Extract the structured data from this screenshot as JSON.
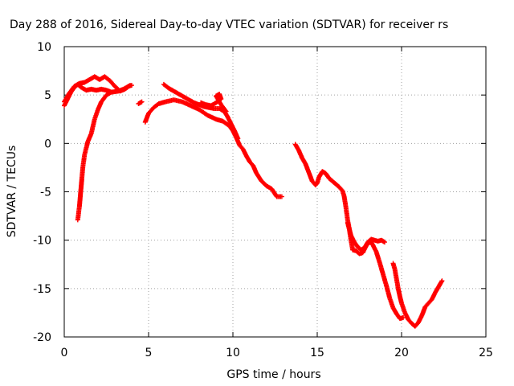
{
  "chart_data": {
    "type": "scatter",
    "title": "Day 288 of 2016, Sidereal Day-to-day VTEC variation (SDTVAR) for receiver rs",
    "xlabel": "GPS time / hours",
    "ylabel": "SDTVAR / TECUs",
    "xlim": [
      0,
      25
    ],
    "ylim": [
      -20,
      10
    ],
    "xticks": [
      0,
      5,
      10,
      15,
      20,
      25
    ],
    "yticks": [
      -20,
      -15,
      -10,
      -5,
      0,
      5,
      10
    ],
    "xtick_labels": [
      "0",
      "5",
      "10",
      "15",
      "20",
      "25"
    ],
    "ytick_labels": [
      "-20",
      "-15",
      "-10",
      "-5",
      "0",
      "5",
      "10"
    ],
    "grid": true,
    "marker": "plus",
    "color": "#ff0000",
    "series": [
      {
        "points": [
          [
            0.0,
            3.9
          ],
          [
            0.2,
            4.6
          ],
          [
            0.4,
            5.3
          ],
          [
            0.6,
            5.8
          ],
          [
            0.8,
            6.1
          ],
          [
            1.0,
            5.8
          ],
          [
            1.3,
            5.5
          ],
          [
            1.6,
            5.6
          ],
          [
            1.9,
            5.5
          ],
          [
            2.2,
            5.6
          ],
          [
            2.5,
            5.5
          ],
          [
            2.8,
            5.3
          ],
          [
            3.2,
            5.4
          ],
          [
            3.5,
            5.6
          ],
          [
            3.8,
            5.9
          ],
          [
            4.0,
            6.0
          ]
        ]
      },
      {
        "points": [
          [
            0.0,
            4.3
          ],
          [
            0.3,
            5.2
          ],
          [
            0.6,
            5.9
          ],
          [
            0.9,
            6.2
          ],
          [
            1.2,
            6.3
          ],
          [
            1.5,
            6.6
          ],
          [
            1.8,
            6.9
          ],
          [
            2.1,
            6.6
          ],
          [
            2.4,
            6.9
          ],
          [
            2.7,
            6.5
          ],
          [
            3.0,
            5.9
          ],
          [
            3.3,
            5.4
          ],
          [
            3.6,
            5.6
          ],
          [
            3.9,
            6.0
          ]
        ]
      },
      {
        "points": [
          [
            0.8,
            -7.9
          ],
          [
            0.9,
            -6.5
          ],
          [
            1.0,
            -4.5
          ],
          [
            1.1,
            -2.5
          ],
          [
            1.2,
            -1.2
          ],
          [
            1.4,
            0.2
          ],
          [
            1.6,
            1.0
          ],
          [
            1.8,
            2.5
          ],
          [
            2.0,
            3.5
          ],
          [
            2.2,
            4.3
          ],
          [
            2.5,
            5.0
          ],
          [
            2.8,
            5.3
          ]
        ]
      },
      {
        "points": [
          [
            4.4,
            4.1
          ],
          [
            4.6,
            4.3
          ]
        ]
      },
      {
        "points": [
          [
            4.8,
            2.2
          ],
          [
            5.0,
            3.1
          ],
          [
            5.3,
            3.7
          ],
          [
            5.6,
            4.1
          ],
          [
            6.0,
            4.3
          ],
          [
            6.5,
            4.5
          ],
          [
            7.0,
            4.3
          ],
          [
            7.5,
            3.9
          ],
          [
            8.0,
            3.5
          ],
          [
            8.5,
            2.9
          ],
          [
            9.0,
            2.5
          ],
          [
            9.4,
            2.3
          ],
          [
            9.8,
            1.8
          ],
          [
            10.0,
            1.3
          ],
          [
            10.2,
            0.6
          ],
          [
            10.4,
            -0.2
          ],
          [
            10.6,
            -0.6
          ],
          [
            10.8,
            -1.3
          ],
          [
            11.0,
            -1.9
          ],
          [
            11.2,
            -2.3
          ],
          [
            11.4,
            -3.1
          ],
          [
            11.7,
            -3.9
          ],
          [
            12.0,
            -4.4
          ],
          [
            12.3,
            -4.7
          ],
          [
            12.6,
            -5.5
          ],
          [
            12.9,
            -5.5
          ]
        ]
      },
      {
        "points": [
          [
            5.9,
            6.1
          ],
          [
            6.2,
            5.7
          ],
          [
            6.5,
            5.4
          ],
          [
            6.8,
            5.1
          ],
          [
            7.1,
            4.8
          ],
          [
            7.4,
            4.5
          ],
          [
            7.7,
            4.2
          ],
          [
            8.0,
            4.0
          ],
          [
            8.3,
            3.8
          ],
          [
            8.6,
            3.7
          ],
          [
            8.9,
            3.6
          ],
          [
            9.2,
            3.6
          ],
          [
            9.5,
            3.3
          ],
          [
            9.7,
            2.7
          ],
          [
            9.9,
            2.0
          ],
          [
            10.1,
            1.3
          ],
          [
            10.3,
            0.5
          ]
        ]
      },
      {
        "points": [
          [
            8.1,
            4.2
          ],
          [
            8.4,
            4.0
          ],
          [
            8.7,
            3.9
          ],
          [
            9.0,
            4.2
          ],
          [
            9.3,
            4.6
          ],
          [
            9.2,
            5.1
          ],
          [
            9.0,
            4.9
          ],
          [
            9.3,
            4.0
          ],
          [
            9.6,
            3.3
          ]
        ]
      },
      {
        "points": [
          [
            13.7,
            -0.1
          ],
          [
            13.9,
            -0.7
          ],
          [
            14.1,
            -1.5
          ],
          [
            14.3,
            -2.1
          ],
          [
            14.5,
            -3.0
          ],
          [
            14.7,
            -3.9
          ],
          [
            14.9,
            -4.3
          ],
          [
            15.0,
            -4.1
          ],
          [
            15.1,
            -3.5
          ],
          [
            15.3,
            -2.9
          ],
          [
            15.5,
            -3.1
          ],
          [
            15.7,
            -3.6
          ],
          [
            15.9,
            -3.9
          ],
          [
            16.1,
            -4.2
          ],
          [
            16.3,
            -4.5
          ],
          [
            16.5,
            -4.9
          ],
          [
            16.6,
            -5.5
          ],
          [
            16.7,
            -6.6
          ],
          [
            16.8,
            -7.9
          ],
          [
            16.9,
            -8.8
          ],
          [
            17.0,
            -10.0
          ],
          [
            17.1,
            -11.0
          ],
          [
            17.3,
            -11.1
          ],
          [
            17.5,
            -11.4
          ],
          [
            17.7,
            -11.3
          ],
          [
            17.9,
            -10.6
          ],
          [
            18.0,
            -10.3
          ],
          [
            18.2,
            -10.2
          ],
          [
            18.3,
            -10.5
          ],
          [
            18.5,
            -11.2
          ],
          [
            18.7,
            -12.3
          ],
          [
            18.9,
            -13.5
          ],
          [
            19.1,
            -14.7
          ],
          [
            19.3,
            -16.0
          ],
          [
            19.5,
            -17.0
          ],
          [
            19.7,
            -17.6
          ],
          [
            19.9,
            -18.1
          ],
          [
            20.1,
            -18.0
          ]
        ]
      },
      {
        "points": [
          [
            16.8,
            -8.2
          ],
          [
            17.0,
            -9.5
          ],
          [
            17.2,
            -10.2
          ],
          [
            17.4,
            -10.7
          ],
          [
            17.6,
            -11.0
          ],
          [
            17.8,
            -10.8
          ],
          [
            18.0,
            -10.2
          ],
          [
            18.2,
            -9.9
          ],
          [
            18.4,
            -10.0
          ],
          [
            18.6,
            -10.1
          ],
          [
            18.8,
            -10.0
          ],
          [
            19.0,
            -10.2
          ]
        ]
      },
      {
        "points": [
          [
            19.5,
            -12.4
          ],
          [
            19.6,
            -13.0
          ],
          [
            19.7,
            -14.0
          ],
          [
            19.8,
            -15.0
          ],
          [
            19.9,
            -15.8
          ],
          [
            20.0,
            -16.5
          ],
          [
            20.2,
            -17.5
          ],
          [
            20.4,
            -18.2
          ],
          [
            20.6,
            -18.6
          ],
          [
            20.8,
            -18.9
          ],
          [
            21.0,
            -18.5
          ],
          [
            21.2,
            -17.8
          ],
          [
            21.4,
            -16.9
          ],
          [
            21.6,
            -16.5
          ],
          [
            21.8,
            -16.1
          ],
          [
            22.0,
            -15.4
          ],
          [
            22.2,
            -14.8
          ],
          [
            22.4,
            -14.2
          ]
        ]
      }
    ]
  }
}
